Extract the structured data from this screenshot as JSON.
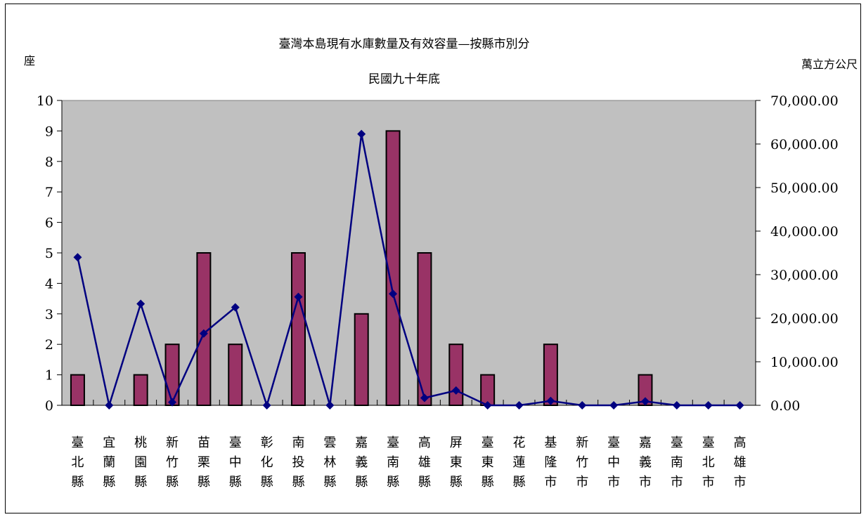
{
  "chart_data": {
    "type": "bar+line",
    "title": "臺灣本島現有水庫數量及有效容量—按縣市別分",
    "subtitle": "民國九十年底",
    "y_left_label": "座",
    "y_right_label": "萬立方公尺",
    "y_left_lim": [
      0,
      10
    ],
    "y_right_lim": [
      0,
      70000
    ],
    "y_left_ticks": [
      "0",
      "1",
      "2",
      "3",
      "4",
      "5",
      "6",
      "7",
      "8",
      "9",
      "10"
    ],
    "y_right_ticks": [
      "0.00",
      "10,000.00",
      "20,000.00",
      "30,000.00",
      "40,000.00",
      "50,000.00",
      "60,000.00",
      "70,000.00"
    ],
    "categories": [
      "臺北縣",
      "宜蘭縣",
      "桃園縣",
      "新竹縣",
      "苗栗縣",
      "臺中縣",
      "彰化縣",
      "南投縣",
      "雲林縣",
      "嘉義縣",
      "臺南縣",
      "高雄縣",
      "屏東縣",
      "臺東縣",
      "花蓮縣",
      "基隆市",
      "新竹市",
      "臺中市",
      "嘉義市",
      "臺南市",
      "臺北市",
      "高雄市"
    ],
    "bar_values": [
      1,
      0,
      1,
      2,
      5,
      2,
      0,
      5,
      0,
      3,
      9,
      5,
      2,
      1,
      0,
      2,
      0,
      0,
      1,
      0,
      0,
      0
    ],
    "line_values": [
      34000,
      0,
      23300,
      700,
      16500,
      22500,
      0,
      24900,
      0,
      62300,
      25600,
      1700,
      3400,
      0,
      0,
      1000,
      0,
      0,
      900,
      0,
      0,
      0
    ],
    "bar_color": "#993366",
    "line_color": "#000080",
    "plot_bg": "#c0c0c0",
    "grid": false,
    "legend": "none"
  }
}
